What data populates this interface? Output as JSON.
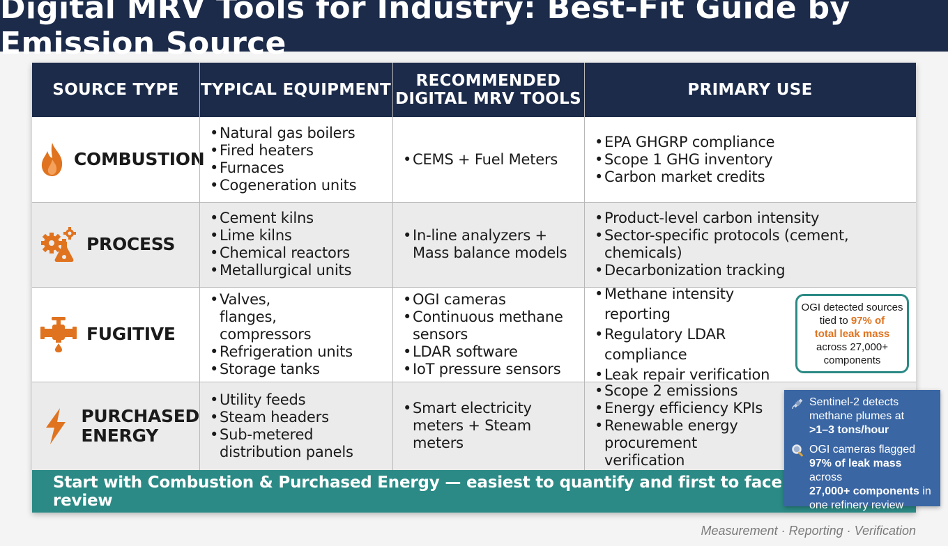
{
  "title": "Digital MRV Tools for Industry: Best-Fit Guide by Emission Source",
  "colors": {
    "navy": "#1c2b4a",
    "teal": "#2b8a85",
    "orange": "#e0731f",
    "blue": "#3a66a4"
  },
  "headers": {
    "source_type": "SOURCE TYPE",
    "typical_equipment": "TYPICAL EQUIPMENT",
    "tools_line1": "RECOMMENDED",
    "tools_line2": "DIGITAL MRV TOOLS",
    "primary_use": "PRIMARY USE"
  },
  "rows": [
    {
      "icon": "flame-icon",
      "source": "COMBUSTION",
      "equipment": [
        "Natural gas boilers",
        "Fired heaters",
        "Furnaces",
        "Cogeneration units"
      ],
      "tools": [
        "CEMS + Fuel Meters"
      ],
      "uses": [
        "EPA GHGRP compliance",
        "Scope 1 GHG inventory",
        "Carbon market credits"
      ]
    },
    {
      "icon": "gear-flask-icon",
      "source": "PROCESS",
      "equipment": [
        "Cement kilns",
        "Lime kilns",
        "Chemical reactors",
        "Metallurgical units"
      ],
      "tools": [
        "In-line analyzers + Mass balance models"
      ],
      "uses": [
        "Product-level carbon intensity",
        "Sector-specific protocols (cement, chemicals)",
        "Decarbonization tracking"
      ]
    },
    {
      "icon": "valve-drip-icon",
      "source": "FUGITIVE",
      "equipment": [
        "Valves, flanges, compressors",
        "Refrigeration units",
        "Storage tanks"
      ],
      "tools": [
        "OGI cameras",
        "Continuous methane sensors",
        "LDAR software",
        "IoT pressure sensors"
      ],
      "uses": [
        "Methane intensity reporting",
        "Regulatory LDAR compliance",
        "Leak repair verification"
      ]
    },
    {
      "icon": "lightning-icon",
      "source_line1": "PURCHASED",
      "source_line2": "ENERGY",
      "equipment": [
        "Utility feeds",
        "Steam headers",
        "Sub-metered distribution panels"
      ],
      "tools": [
        "Smart electricity meters + Steam meters"
      ],
      "uses": [
        "Scope 2 emissions",
        "Energy efficiency KPIs",
        "Renewable energy procurement verification"
      ]
    }
  ],
  "ogi_callout": {
    "line1": "OGI detected sources",
    "line2_pre": "tied to ",
    "line2_hl": "97% of",
    "line3_hl": "total leak mass",
    "line4": "across 27,000+",
    "line5": "components"
  },
  "blue_callout": {
    "item1_icon": "satellite-icon",
    "item1_text": "Sentinel-2 detects methane plumes at",
    "item1_bold": ">1–3 tons/hour",
    "item2_icon": "magnifier-icon",
    "item2_pre": "OGI cameras flagged",
    "item2_bold1": "97% of leak mass",
    "item2_mid": " across",
    "item2_bold2": "27,000+ components",
    "item2_post": " in one refinery review"
  },
  "banner": "Start with Combustion & Purchased Energy — easiest to quantify and first to face regulatory review",
  "footer": "Measurement · Reporting · Verification"
}
